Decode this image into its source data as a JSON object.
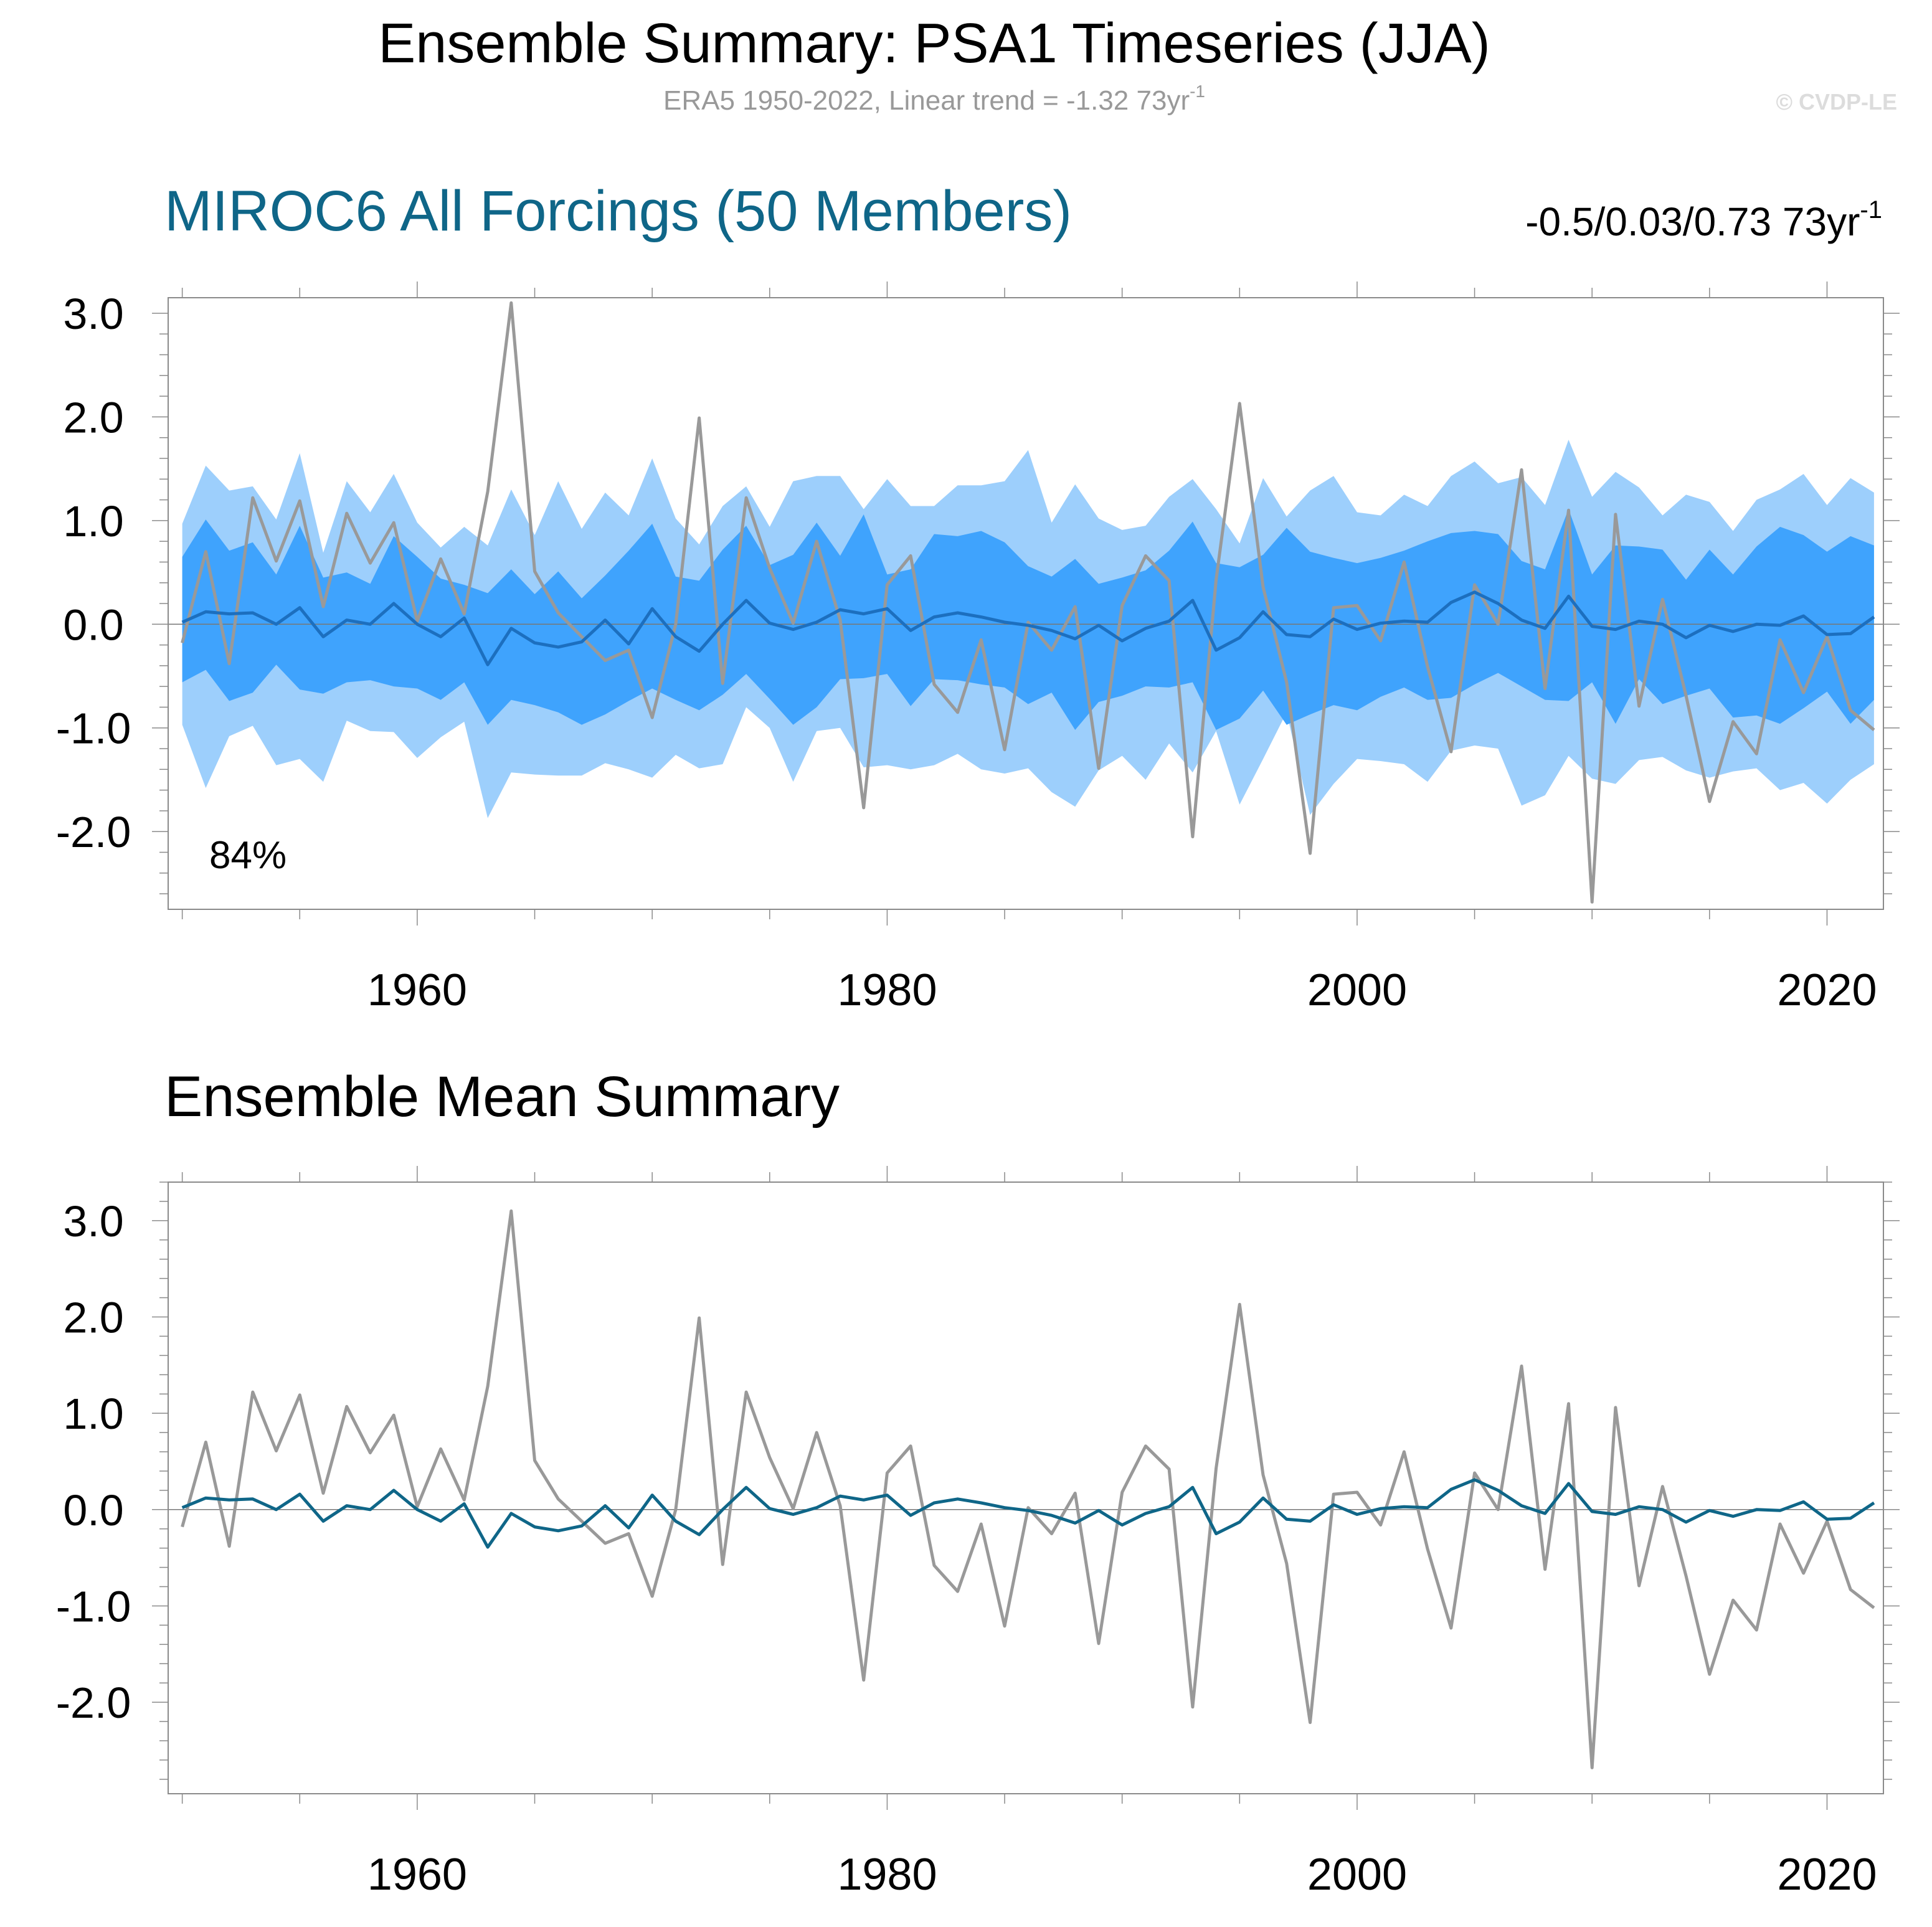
{
  "title": "Ensemble Summary: PSA1 Timeseries (JJA)",
  "subtitle": {
    "prefix": "ERA5 1950-2022, Linear trend = -1.32 73yr",
    "superscript": "-1"
  },
  "copyright": "© CVDP-LE",
  "colors": {
    "obs": "#999999",
    "ens_mean": "#1c6fbf",
    "ens_mean_bottom": "#0f6688",
    "band_outer": "#9dcffc",
    "band_inner": "#3fa3fd",
    "panel_title": "#0f6688",
    "frame": "#8a8a8a"
  },
  "chart_data": [
    {
      "type": "line",
      "panel": "top",
      "title": "MIROC6 All Forcings (50 Members)",
      "trend_text": "-0.5/0.03/0.73 73yr",
      "trend_superscript": "-1",
      "annotation": "84%",
      "x_start": 1950,
      "x_end": 2022,
      "xlim": [
        1949.4,
        2022.4
      ],
      "ylim": [
        -2.75,
        3.15
      ],
      "x_ticks": [
        1960,
        1980,
        2000,
        2020
      ],
      "x_tick_labels": [
        "1960",
        "1980",
        "2000",
        "2020"
      ],
      "y_ticks": [
        -2.0,
        -1.0,
        0.0,
        1.0,
        2.0,
        3.0
      ],
      "y_tick_labels": [
        "-2.0",
        "-1.0",
        "0.0",
        "1.0",
        "2.0",
        "3.0"
      ],
      "series": [
        {
          "name": "ERA5",
          "values": [
            -0.18,
            0.7,
            -0.38,
            1.22,
            0.61,
            1.19,
            0.17,
            1.07,
            0.59,
            0.98,
            0.03,
            0.63,
            0.1,
            1.28,
            3.1,
            0.51,
            0.11,
            -0.12,
            -0.35,
            -0.25,
            -0.9,
            0.0,
            1.99,
            -0.57,
            1.22,
            0.54,
            0.01,
            0.8,
            0.04,
            -1.77,
            0.38,
            0.66,
            -0.58,
            -0.85,
            -0.15,
            -1.21,
            0.02,
            -0.25,
            0.17,
            -1.39,
            0.18,
            0.66,
            0.42,
            -2.05,
            0.43,
            2.13,
            0.36,
            -0.56,
            -2.21,
            0.16,
            0.18,
            -0.16,
            0.6,
            -0.41,
            -1.23,
            0.38,
            0.0,
            1.49,
            -0.62,
            1.1,
            -2.68,
            1.06,
            -0.79,
            0.24,
            -0.69,
            -1.71,
            -0.94,
            -1.25,
            -0.15,
            -0.66,
            -0.12,
            -0.83,
            -1.02
          ]
        },
        {
          "name": "Ensemble mean",
          "values": [
            0.02,
            0.12,
            0.1,
            0.11,
            0.0,
            0.16,
            -0.12,
            0.04,
            0.0,
            0.2,
            0.0,
            -0.12,
            0.06,
            -0.39,
            -0.04,
            -0.18,
            -0.22,
            -0.17,
            0.04,
            -0.19,
            0.15,
            -0.12,
            -0.26,
            0.0,
            0.23,
            0.01,
            -0.05,
            0.02,
            0.14,
            0.1,
            0.15,
            -0.06,
            0.07,
            0.11,
            0.07,
            0.02,
            -0.01,
            -0.06,
            -0.14,
            -0.01,
            -0.16,
            -0.04,
            0.03,
            0.23,
            -0.25,
            -0.13,
            0.12,
            -0.1,
            -0.12,
            0.05,
            -0.05,
            0.01,
            0.03,
            0.02,
            0.21,
            0.31,
            0.2,
            0.04,
            -0.04,
            0.27,
            -0.02,
            -0.05,
            0.03,
            0.0,
            -0.13,
            -0.01,
            -0.07,
            0.0,
            -0.01,
            0.08,
            -0.1,
            -0.09,
            0.07
          ]
        }
      ],
      "band_outer_upper": [
        0.97,
        1.53,
        1.29,
        1.33,
        1.01,
        1.65,
        0.69,
        1.38,
        1.08,
        1.45,
        0.98,
        0.74,
        0.94,
        0.76,
        1.3,
        0.86,
        1.38,
        0.92,
        1.27,
        1.05,
        1.6,
        1.02,
        0.77,
        1.14,
        1.33,
        0.94,
        1.38,
        1.43,
        1.43,
        1.11,
        1.4,
        1.14,
        1.14,
        1.34,
        1.34,
        1.38,
        1.68,
        0.98,
        1.35,
        1.02,
        0.91,
        0.95,
        1.23,
        1.4,
        1.11,
        0.78,
        1.41,
        1.04,
        1.29,
        1.43,
        1.08,
        1.05,
        1.25,
        1.14,
        1.43,
        1.57,
        1.36,
        1.42,
        1.15,
        1.78,
        1.23,
        1.47,
        1.32,
        1.05,
        1.25,
        1.18,
        0.9,
        1.2,
        1.3,
        1.45,
        1.15,
        1.41,
        1.27
      ],
      "band_inner_upper": [
        0.65,
        1.01,
        0.71,
        0.79,
        0.48,
        0.95,
        0.45,
        0.5,
        0.39,
        0.85,
        0.65,
        0.44,
        0.38,
        0.3,
        0.53,
        0.29,
        0.51,
        0.25,
        0.47,
        0.71,
        0.97,
        0.46,
        0.42,
        0.72,
        0.95,
        0.57,
        0.67,
        0.98,
        0.66,
        1.06,
        0.48,
        0.53,
        0.87,
        0.85,
        0.9,
        0.79,
        0.56,
        0.46,
        0.63,
        0.39,
        0.45,
        0.52,
        0.71,
        0.99,
        0.59,
        0.55,
        0.67,
        0.93,
        0.7,
        0.64,
        0.59,
        0.64,
        0.71,
        0.8,
        0.88,
        0.9,
        0.87,
        0.61,
        0.53,
        1.11,
        0.48,
        0.76,
        0.75,
        0.72,
        0.43,
        0.72,
        0.48,
        0.75,
        0.94,
        0.86,
        0.7,
        0.85,
        0.76
      ],
      "band_inner_lower": [
        -0.56,
        -0.44,
        -0.74,
        -0.66,
        -0.39,
        -0.63,
        -0.67,
        -0.56,
        -0.54,
        -0.6,
        -0.62,
        -0.73,
        -0.56,
        -0.97,
        -0.73,
        -0.78,
        -0.85,
        -0.97,
        -0.87,
        -0.74,
        -0.62,
        -0.73,
        -0.83,
        -0.68,
        -0.48,
        -0.72,
        -0.97,
        -0.8,
        -0.53,
        -0.52,
        -0.48,
        -0.79,
        -0.53,
        -0.54,
        -0.58,
        -0.61,
        -0.77,
        -0.66,
        -1.02,
        -0.75,
        -0.69,
        -0.6,
        -0.61,
        -0.56,
        -1.02,
        -0.91,
        -0.64,
        -0.97,
        -0.87,
        -0.78,
        -0.83,
        -0.7,
        -0.61,
        -0.73,
        -0.71,
        -0.58,
        -0.47,
        -0.6,
        -0.73,
        -0.74,
        -0.56,
        -0.96,
        -0.53,
        -0.77,
        -0.69,
        -0.62,
        -0.9,
        -0.88,
        -0.96,
        -0.81,
        -0.65,
        -0.96,
        -0.73
      ],
      "band_outer_lower": [
        -0.97,
        -1.58,
        -1.08,
        -0.98,
        -1.36,
        -1.3,
        -1.52,
        -0.93,
        -1.03,
        -1.04,
        -1.29,
        -1.09,
        -0.94,
        -1.87,
        -1.43,
        -1.45,
        -1.46,
        -1.46,
        -1.34,
        -1.4,
        -1.48,
        -1.26,
        -1.39,
        -1.35,
        -0.8,
        -1.0,
        -1.52,
        -1.03,
        -1.0,
        -1.38,
        -1.36,
        -1.4,
        -1.36,
        -1.25,
        -1.4,
        -1.44,
        -1.39,
        -1.62,
        -1.76,
        -1.41,
        -1.27,
        -1.5,
        -1.15,
        -1.43,
        -1.03,
        -1.74,
        -1.3,
        -0.85,
        -1.84,
        -1.54,
        -1.3,
        -1.32,
        -1.35,
        -1.52,
        -1.22,
        -1.17,
        -1.2,
        -1.75,
        -1.65,
        -1.27,
        -1.49,
        -1.54,
        -1.31,
        -1.28,
        -1.41,
        -1.48,
        -1.42,
        -1.39,
        -1.6,
        -1.53,
        -1.73,
        -1.5,
        -1.35
      ]
    },
    {
      "type": "line",
      "panel": "bottom",
      "title": "Ensemble Mean Summary",
      "x_start": 1950,
      "x_end": 2022,
      "xlim": [
        1949.4,
        2022.4
      ],
      "ylim": [
        -2.95,
        3.4
      ],
      "x_ticks": [
        1960,
        1980,
        2000,
        2020
      ],
      "x_tick_labels": [
        "1960",
        "1980",
        "2000",
        "2020"
      ],
      "y_ticks": [
        -2.0,
        -1.0,
        0.0,
        1.0,
        2.0,
        3.0
      ],
      "y_tick_labels": [
        "-2.0",
        "-1.0",
        "0.0",
        "1.0",
        "2.0",
        "3.0"
      ],
      "series_ref": "top"
    }
  ]
}
